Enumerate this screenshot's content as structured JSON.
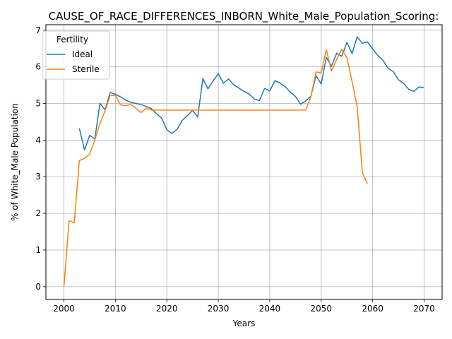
{
  "chart_data": {
    "type": "line",
    "title": "CAUSE_OF_RACE_DIFFERENCES_INBORN_White_Male_Population_Scoring:",
    "xlabel": "Years",
    "ylabel": "% of White_Male Population",
    "xlim": [
      1996.5,
      2073.5
    ],
    "ylim": [
      -0.35,
      7.15
    ],
    "xticks": [
      2000,
      2010,
      2020,
      2030,
      2040,
      2050,
      2060,
      2070
    ],
    "yticks": [
      0,
      1,
      2,
      3,
      4,
      5,
      6,
      7
    ],
    "grid": true,
    "legend": {
      "title": "Fertility",
      "placement": "top-left"
    },
    "series": [
      {
        "name": "Ideal",
        "color": "#1f77b4",
        "x": [
          2003,
          2004,
          2005,
          2006,
          2007,
          2008,
          2009,
          2010,
          2011,
          2012,
          2013,
          2014,
          2015,
          2016,
          2017,
          2018,
          2019,
          2020,
          2021,
          2022,
          2023,
          2024,
          2025,
          2026,
          2027,
          2028,
          2029,
          2030,
          2031,
          2032,
          2033,
          2034,
          2035,
          2036,
          2037,
          2038,
          2039,
          2040,
          2041,
          2042,
          2043,
          2044,
          2045,
          2046,
          2047,
          2048,
          2049,
          2050,
          2051,
          2052,
          2053,
          2054,
          2055,
          2056,
          2057,
          2058,
          2059,
          2060,
          2061,
          2062,
          2063,
          2064,
          2065,
          2066,
          2067,
          2068,
          2069,
          2070
        ],
        "values": [
          4.32,
          3.73,
          4.13,
          4.03,
          5.0,
          4.83,
          5.3,
          5.25,
          5.18,
          5.09,
          5.03,
          5.0,
          4.97,
          4.92,
          4.86,
          4.72,
          4.6,
          4.28,
          4.18,
          4.3,
          4.54,
          4.67,
          4.81,
          4.63,
          5.68,
          5.4,
          5.62,
          5.81,
          5.55,
          5.67,
          5.51,
          5.42,
          5.33,
          5.26,
          5.12,
          5.08,
          5.41,
          5.34,
          5.62,
          5.56,
          5.46,
          5.31,
          5.19,
          4.98,
          5.07,
          5.2,
          5.76,
          5.53,
          6.26,
          6.02,
          6.37,
          6.29,
          6.67,
          6.36,
          6.82,
          6.64,
          6.68,
          6.49,
          6.31,
          6.18,
          5.96,
          5.87,
          5.65,
          5.55,
          5.39,
          5.33,
          5.45,
          5.43
        ]
      },
      {
        "name": "Sterile",
        "color": "#ff7f0e",
        "x": [
          2000,
          2001,
          2002,
          2003,
          2004,
          2005,
          2006,
          2007,
          2008,
          2009,
          2010,
          2011,
          2012,
          2013,
          2014,
          2015,
          2016,
          2017,
          2018,
          2019,
          2020,
          2021,
          2022,
          2023,
          2024,
          2025,
          2026,
          2027,
          2028,
          2029,
          2030,
          2031,
          2032,
          2033,
          2034,
          2035,
          2036,
          2037,
          2038,
          2039,
          2040,
          2041,
          2042,
          2043,
          2044,
          2045,
          2046,
          2047,
          2048,
          2049,
          2050,
          2051,
          2052,
          2053,
          2054,
          2055,
          2056,
          2057,
          2058,
          2059
        ],
        "values": [
          0.0,
          1.8,
          1.74,
          3.44,
          3.5,
          3.62,
          4.0,
          4.45,
          4.8,
          5.22,
          5.22,
          4.96,
          4.94,
          4.97,
          4.87,
          4.75,
          4.87,
          4.82,
          4.82,
          4.82,
          4.82,
          4.82,
          4.82,
          4.82,
          4.82,
          4.82,
          4.82,
          4.82,
          4.82,
          4.82,
          4.82,
          4.82,
          4.82,
          4.82,
          4.82,
          4.82,
          4.82,
          4.82,
          4.82,
          4.82,
          4.82,
          4.82,
          4.82,
          4.82,
          4.82,
          4.82,
          4.82,
          4.82,
          5.19,
          5.86,
          5.84,
          6.47,
          5.89,
          6.2,
          6.48,
          6.25,
          5.6,
          4.91,
          3.11,
          2.8
        ]
      }
    ]
  }
}
